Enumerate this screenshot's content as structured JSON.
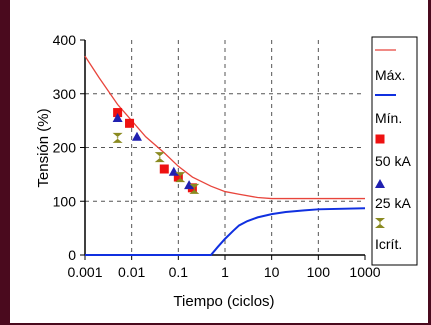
{
  "colors": {
    "frame": "#4a0a1e",
    "max_line": "#e8453c",
    "min_line": "#1030e0",
    "sq50": "#ee1111",
    "tri25": "#2020b0",
    "crit": "#8a8a20"
  },
  "chart_data": {
    "type": "scatter",
    "xscale": "log",
    "xlim": [
      0.001,
      1000
    ],
    "ylim": [
      0,
      400
    ],
    "xlabel": "Tiempo (ciclos)",
    "ylabel": "Tensión (%)",
    "grid": true,
    "legend_placement": "right",
    "xticks": [
      "0.001",
      "0.01",
      "0.1",
      "1",
      "10",
      "100",
      "1000"
    ],
    "xtick_values": [
      0.001,
      0.01,
      0.1,
      1,
      10,
      100,
      1000
    ],
    "yticks": [
      "0",
      "100",
      "200",
      "300",
      "400"
    ],
    "ytick_values": [
      0,
      100,
      200,
      300,
      400
    ],
    "series": [
      {
        "name": "Máx.",
        "kind": "line",
        "x": [
          0.001,
          0.002,
          0.005,
          0.01,
          0.02,
          0.05,
          0.1,
          0.2,
          0.5,
          1,
          2,
          5,
          10,
          20,
          100,
          1000
        ],
        "y": [
          370,
          330,
          280,
          250,
          220,
          190,
          165,
          145,
          128,
          118,
          113,
          107,
          105,
          105,
          105,
          105
        ]
      },
      {
        "name": "Mín.",
        "kind": "line",
        "x": [
          0.001,
          0.01,
          0.1,
          0.3,
          0.5,
          0.7,
          1,
          1.5,
          2,
          3,
          5,
          10,
          20,
          50,
          100,
          1000
        ],
        "y": [
          0,
          0,
          0,
          0,
          0,
          15,
          30,
          45,
          55,
          63,
          70,
          76,
          80,
          83,
          85,
          87
        ]
      },
      {
        "name": "50 kA",
        "kind": "marker",
        "marker": "square",
        "x": [
          0.005,
          0.009,
          0.05,
          0.1,
          0.2
        ],
        "y": [
          265,
          245,
          160,
          145,
          125
        ]
      },
      {
        "name": "25 kA",
        "kind": "marker",
        "marker": "triangle",
        "x": [
          0.005,
          0.013,
          0.08,
          0.17
        ],
        "y": [
          255,
          220,
          155,
          130
        ]
      },
      {
        "name": "Icrít.",
        "kind": "marker",
        "marker": "hourglass",
        "x": [
          0.005,
          0.04,
          0.11,
          0.22
        ],
        "y": [
          218,
          182,
          145,
          123
        ]
      }
    ]
  }
}
